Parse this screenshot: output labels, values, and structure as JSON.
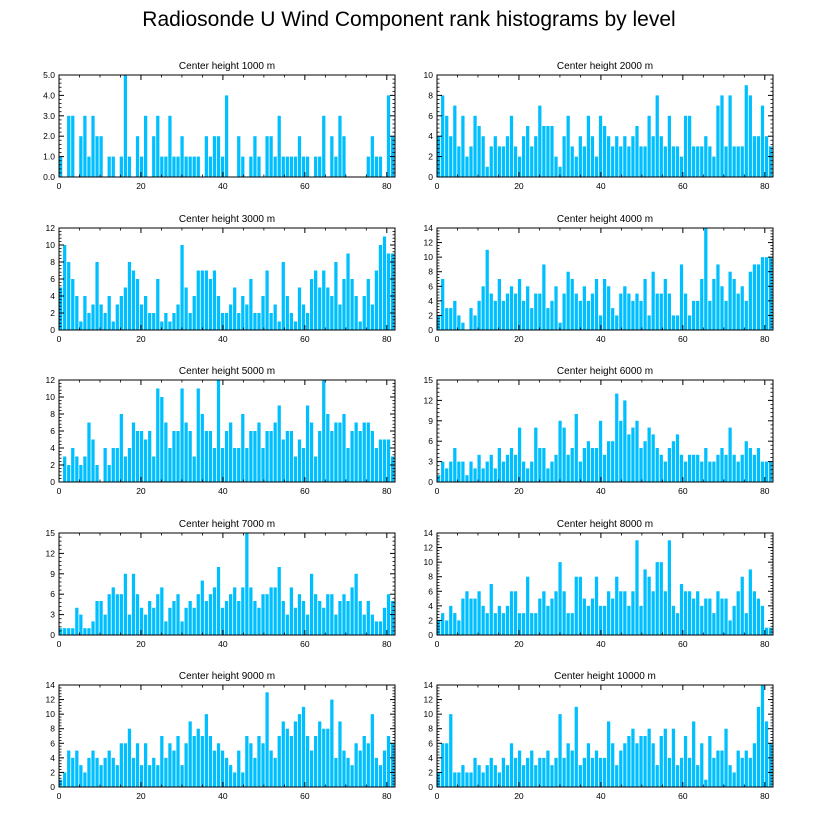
{
  "title": "Radiosonde U Wind Component rank histograms by level",
  "colors": {
    "bar": "#00BFFF",
    "axis": "#000000"
  },
  "chart_data": [
    {
      "type": "bar",
      "title": "Center height 1000 m",
      "xlim": [
        0,
        82
      ],
      "ylim": [
        0,
        5
      ],
      "xticks": [
        "0",
        "20",
        "40",
        "60",
        "80"
      ],
      "yticks": [
        "0.0",
        "1.0",
        "2.0",
        "3.0",
        "4.0",
        "5.0"
      ],
      "values": [
        1,
        0,
        3,
        3,
        0,
        2,
        3,
        1,
        3,
        2,
        2,
        0,
        1,
        1,
        0,
        1,
        5,
        1,
        0,
        2,
        1,
        3,
        0,
        2,
        3,
        1,
        1,
        3,
        1,
        1,
        2,
        1,
        1,
        1,
        1,
        0,
        2,
        1,
        2,
        2,
        1,
        4,
        0,
        0,
        2,
        1,
        0,
        1,
        2,
        1,
        0,
        2,
        2,
        1,
        3,
        1,
        1,
        1,
        1,
        2,
        1,
        1,
        0,
        1,
        1,
        3,
        0,
        2,
        1,
        3,
        2,
        0,
        0,
        0,
        0,
        0,
        1,
        2,
        1,
        1,
        0,
        4,
        2
      ],
      "position": "top-left"
    },
    {
      "type": "bar",
      "title": "Center height 2000 m",
      "xlim": [
        0,
        82
      ],
      "ylim": [
        0,
        10
      ],
      "xticks": [
        "0",
        "20",
        "40",
        "60",
        "80"
      ],
      "yticks": [
        "0",
        "2",
        "4",
        "6",
        "8",
        "10"
      ],
      "values": [
        4,
        8,
        6,
        4,
        7,
        3,
        6,
        2,
        3,
        6,
        5,
        4,
        1,
        3,
        4,
        3,
        3,
        4,
        6,
        3,
        2,
        4,
        5,
        3,
        4,
        7,
        5,
        5,
        5,
        2,
        1,
        4,
        6,
        3,
        2,
        4,
        3,
        6,
        4,
        2,
        6,
        5,
        4,
        3,
        4,
        3,
        4,
        3,
        4,
        5,
        3,
        3,
        6,
        4,
        8,
        4,
        3,
        6,
        3,
        3,
        2,
        6,
        6,
        3,
        3,
        3,
        4,
        3,
        2,
        7,
        8,
        3,
        8,
        3,
        3,
        3,
        9,
        8,
        4,
        4,
        7,
        4,
        3
      ],
      "position": "top-right"
    },
    {
      "type": "bar",
      "title": "Center height 3000 m",
      "xlim": [
        0,
        82
      ],
      "ylim": [
        0,
        12
      ],
      "xticks": [
        "0",
        "20",
        "40",
        "60",
        "80"
      ],
      "yticks": [
        "0",
        "2",
        "4",
        "6",
        "8",
        "10",
        "12"
      ],
      "values": [
        5,
        10,
        8,
        6,
        4,
        1,
        4,
        2,
        3,
        8,
        3,
        2,
        4,
        1,
        3,
        4,
        5,
        8,
        7,
        6,
        3,
        4,
        2,
        2,
        6,
        1,
        2,
        1,
        2,
        3,
        10,
        5,
        2,
        4,
        7,
        7,
        7,
        6,
        7,
        4,
        2,
        2,
        3,
        5,
        2,
        4,
        3,
        6,
        2,
        2,
        4,
        7,
        2,
        3,
        1,
        8,
        4,
        2,
        1,
        5,
        3,
        2,
        6,
        7,
        5,
        7,
        5,
        4,
        8,
        3,
        6,
        9,
        6,
        4,
        1,
        4,
        6,
        3,
        7,
        10,
        11,
        9,
        9
      ],
      "position": "middle-left"
    },
    {
      "type": "bar",
      "title": "Center height 4000 m",
      "xlim": [
        0,
        82
      ],
      "ylim": [
        0,
        14
      ],
      "xticks": [
        "0",
        "20",
        "40",
        "60",
        "80"
      ],
      "yticks": [
        "0",
        "2",
        "4",
        "6",
        "8",
        "10",
        "12",
        "14"
      ],
      "values": [
        2,
        7,
        3,
        3,
        4,
        2,
        1,
        0,
        3,
        2,
        4,
        6,
        11,
        5,
        4,
        7,
        4,
        5,
        6,
        5,
        7,
        4,
        6,
        3,
        5,
        5,
        9,
        3,
        4,
        6,
        1,
        5,
        8,
        7,
        5,
        4,
        6,
        4,
        5,
        7,
        2,
        7,
        6,
        3,
        2,
        5,
        6,
        5,
        4,
        5,
        4,
        7,
        2,
        8,
        5,
        5,
        7,
        5,
        2,
        2,
        9,
        5,
        2,
        4,
        4,
        7,
        14,
        4,
        7,
        9,
        6,
        4,
        8,
        7,
        5,
        6,
        4,
        8,
        9,
        9,
        10,
        10,
        10
      ],
      "position": "middle-right"
    },
    {
      "type": "bar",
      "title": "Center height 5000 m",
      "xlim": [
        0,
        82
      ],
      "ylim": [
        0,
        12
      ],
      "xticks": [
        "0",
        "20",
        "40",
        "60",
        "80"
      ],
      "yticks": [
        "0",
        "2",
        "4",
        "6",
        "8",
        "10",
        "12"
      ],
      "values": [
        0,
        3,
        2,
        4,
        3,
        2,
        3,
        7,
        5,
        2,
        0,
        4,
        2,
        4,
        4,
        8,
        3,
        4,
        7,
        6,
        6,
        5,
        6,
        3,
        11,
        10,
        7,
        4,
        6,
        6,
        11,
        7,
        6,
        3,
        11,
        8,
        6,
        6,
        4,
        12,
        4,
        6,
        7,
        4,
        4,
        8,
        4,
        6,
        6,
        7,
        4,
        6,
        6,
        7,
        9,
        5,
        6,
        6,
        3,
        5,
        4,
        9,
        7,
        3,
        6,
        12,
        8,
        6,
        7,
        7,
        8,
        4,
        6,
        7,
        6,
        7,
        7,
        6,
        4,
        5,
        5,
        5,
        3
      ],
      "position": "middle-left"
    },
    {
      "type": "bar",
      "title": "Center height 6000 m",
      "xlim": [
        0,
        82
      ],
      "ylim": [
        0,
        15
      ],
      "xticks": [
        "0",
        "20",
        "40",
        "60",
        "80"
      ],
      "yticks": [
        "0",
        "3",
        "6",
        "9",
        "12",
        "15"
      ],
      "values": [
        1,
        3,
        2,
        3,
        5,
        3,
        3,
        1,
        3,
        2,
        4,
        2,
        3,
        4,
        2,
        5,
        3,
        4,
        5,
        4,
        8,
        3,
        2,
        3,
        8,
        5,
        5,
        2,
        3,
        4,
        9,
        8,
        4,
        5,
        10,
        3,
        5,
        6,
        5,
        5,
        9,
        4,
        6,
        6,
        13,
        9,
        12,
        7,
        8,
        9,
        5,
        6,
        8,
        7,
        5,
        4,
        3,
        5,
        6,
        7,
        4,
        3,
        4,
        4,
        4,
        3,
        5,
        3,
        3,
        4,
        5,
        4,
        8,
        4,
        3,
        4,
        6,
        5,
        4,
        5,
        3,
        3,
        3
      ],
      "position": "middle-right"
    },
    {
      "type": "bar",
      "title": "Center height 7000 m",
      "xlim": [
        0,
        82
      ],
      "ylim": [
        0,
        15
      ],
      "xticks": [
        "0",
        "20",
        "40",
        "60",
        "80"
      ],
      "yticks": [
        "0",
        "3",
        "6",
        "9",
        "12",
        "15"
      ],
      "values": [
        1,
        1,
        1,
        1,
        4,
        3,
        1,
        1,
        2,
        5,
        5,
        3,
        6,
        7,
        6,
        6,
        9,
        3,
        9,
        6,
        4,
        3,
        5,
        4,
        6,
        7,
        2,
        4,
        5,
        6,
        2,
        4,
        5,
        4,
        6,
        8,
        5,
        6,
        7,
        10,
        4,
        5,
        6,
        7,
        5,
        7,
        15,
        7,
        5,
        4,
        6,
        6,
        7,
        7,
        10,
        5,
        3,
        7,
        4,
        6,
        5,
        3,
        9,
        6,
        5,
        4,
        6,
        6,
        3,
        5,
        6,
        5,
        7,
        9,
        5,
        3,
        5,
        3,
        2,
        2,
        4,
        6,
        5
      ],
      "position": "middle-left"
    },
    {
      "type": "bar",
      "title": "Center height 8000 m",
      "xlim": [
        0,
        82
      ],
      "ylim": [
        0,
        14
      ],
      "xticks": [
        "0",
        "20",
        "40",
        "60",
        "80"
      ],
      "yticks": [
        "0",
        "2",
        "4",
        "6",
        "8",
        "10",
        "12",
        "14"
      ],
      "values": [
        2,
        3,
        2,
        4,
        3,
        2,
        5,
        6,
        5,
        5,
        6,
        4,
        3,
        7,
        3,
        4,
        3,
        4,
        6,
        6,
        3,
        3,
        8,
        3,
        3,
        5,
        6,
        4,
        5,
        6,
        10,
        6,
        3,
        3,
        8,
        8,
        5,
        4,
        5,
        8,
        4,
        4,
        6,
        5,
        8,
        6,
        6,
        4,
        6,
        13,
        4,
        9,
        8,
        6,
        10,
        10,
        6,
        13,
        4,
        3,
        7,
        6,
        6,
        5,
        6,
        4,
        5,
        5,
        3,
        6,
        5,
        5,
        2,
        4,
        6,
        8,
        3,
        9,
        6,
        5,
        4,
        1,
        1
      ],
      "position": "middle-right"
    },
    {
      "type": "bar",
      "title": "Center height 9000 m",
      "xlim": [
        0,
        82
      ],
      "ylim": [
        0,
        14
      ],
      "xticks": [
        "0",
        "20",
        "40",
        "60",
        "80"
      ],
      "yticks": [
        "0",
        "2",
        "4",
        "6",
        "8",
        "10",
        "12",
        "14"
      ],
      "values": [
        1,
        2,
        5,
        4,
        5,
        3,
        2,
        4,
        5,
        4,
        3,
        4,
        5,
        4,
        3,
        6,
        6,
        8,
        4,
        6,
        3,
        6,
        3,
        4,
        3,
        7,
        4,
        6,
        5,
        7,
        3,
        6,
        9,
        7,
        8,
        7,
        10,
        7,
        5,
        6,
        5,
        4,
        3,
        2,
        5,
        2,
        7,
        6,
        4,
        7,
        6,
        13,
        5,
        4,
        7,
        9,
        8,
        7,
        9,
        10,
        11,
        7,
        5,
        7,
        9,
        8,
        8,
        12,
        4,
        9,
        5,
        4,
        3,
        6,
        5,
        7,
        6,
        10,
        4,
        3,
        5,
        7,
        6
      ],
      "position": "bottom-left"
    },
    {
      "type": "bar",
      "title": "Center height 10000 m",
      "xlim": [
        0,
        82
      ],
      "ylim": [
        0,
        14
      ],
      "xticks": [
        "0",
        "20",
        "40",
        "60",
        "80"
      ],
      "yticks": [
        "0",
        "2",
        "4",
        "6",
        "8",
        "10",
        "12",
        "14"
      ],
      "values": [
        2,
        6,
        6,
        10,
        2,
        2,
        3,
        2,
        2,
        4,
        3,
        2,
        3,
        4,
        3,
        2,
        4,
        3,
        6,
        4,
        5,
        3,
        4,
        5,
        3,
        4,
        4,
        5,
        3,
        4,
        10,
        4,
        6,
        5,
        11,
        3,
        4,
        6,
        4,
        5,
        4,
        4,
        9,
        6,
        3,
        5,
        6,
        7,
        8,
        6,
        7,
        7,
        8,
        6,
        3,
        7,
        8,
        4,
        8,
        3,
        4,
        7,
        4,
        9,
        3,
        6,
        1,
        7,
        4,
        5,
        5,
        8,
        3,
        2,
        5,
        4,
        5,
        4,
        6,
        11,
        14,
        9,
        6
      ],
      "position": "bottom-right"
    }
  ]
}
